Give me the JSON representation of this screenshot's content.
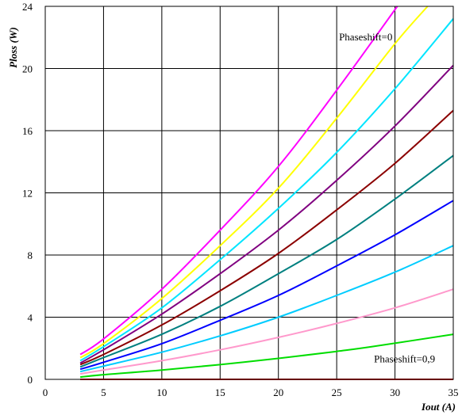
{
  "chart_data": {
    "type": "line",
    "title": "",
    "xlabel": "Iout (A)",
    "ylabel": "Ploss (W)",
    "xlim": [
      0,
      35
    ],
    "ylim": [
      0,
      24
    ],
    "xticks": [
      0,
      5,
      10,
      15,
      20,
      25,
      30,
      35
    ],
    "yticks": [
      0,
      4,
      8,
      12,
      16,
      20,
      24
    ],
    "grid": true,
    "legend": "none",
    "annotations": [
      {
        "text": "Phaseshift=0",
        "x": 25.2,
        "y": 21.8
      },
      {
        "text": "Phaseshift=0,9",
        "x": 28.2,
        "y": 1.1
      }
    ],
    "series": [
      {
        "color": "#ff00ff",
        "x": [
          3,
          5,
          10,
          15,
          20,
          25,
          30.2
        ],
        "y": [
          1.6,
          2.6,
          5.8,
          9.6,
          13.7,
          18.6,
          24
        ]
      },
      {
        "color": "#ffff00",
        "x": [
          3,
          5,
          10,
          15,
          20,
          25,
          30,
          32.8
        ],
        "y": [
          1.4,
          2.3,
          5.2,
          8.6,
          12.3,
          16.8,
          21.6,
          24
        ]
      },
      {
        "color": "#00e5ff",
        "x": [
          3,
          5,
          10,
          15,
          20,
          25,
          30,
          35
        ],
        "y": [
          1.2,
          2.1,
          4.6,
          7.7,
          11.0,
          14.6,
          18.7,
          23.2
        ]
      },
      {
        "color": "#800080",
        "x": [
          3,
          5,
          10,
          15,
          20,
          25,
          30,
          35
        ],
        "y": [
          1.05,
          1.9,
          4.2,
          6.8,
          9.6,
          12.8,
          16.3,
          20.2
        ]
      },
      {
        "color": "#8b0000",
        "x": [
          3,
          5,
          10,
          15,
          20,
          25,
          30,
          35
        ],
        "y": [
          0.95,
          1.6,
          3.5,
          5.7,
          8.1,
          10.9,
          13.9,
          17.3
        ]
      },
      {
        "color": "#008080",
        "x": [
          3,
          5,
          10,
          15,
          20,
          25,
          30,
          35
        ],
        "y": [
          0.8,
          1.4,
          2.9,
          4.7,
          6.8,
          9.0,
          11.6,
          14.4
        ]
      },
      {
        "color": "#0000ff",
        "x": [
          3,
          5,
          10,
          15,
          20,
          25,
          30,
          35
        ],
        "y": [
          0.65,
          1.1,
          2.3,
          3.8,
          5.4,
          7.3,
          9.3,
          11.5
        ]
      },
      {
        "color": "#00ccff",
        "x": [
          3,
          5,
          10,
          15,
          20,
          25,
          30,
          35
        ],
        "y": [
          0.5,
          0.85,
          1.75,
          2.8,
          4.0,
          5.4,
          6.9,
          8.6
        ]
      },
      {
        "color": "#ff99cc",
        "x": [
          3,
          5,
          10,
          15,
          20,
          25,
          30,
          35
        ],
        "y": [
          0.35,
          0.6,
          1.2,
          1.9,
          2.7,
          3.6,
          4.6,
          5.8
        ]
      },
      {
        "color": "#00dd00",
        "x": [
          3,
          5,
          10,
          15,
          20,
          25,
          28,
          35
        ],
        "y": [
          0.15,
          0.3,
          0.6,
          0.95,
          1.35,
          1.8,
          2.1,
          2.9
        ]
      },
      {
        "color": "#cc0000",
        "x": [
          3,
          35
        ],
        "y": [
          0.0,
          0.0
        ]
      }
    ]
  }
}
